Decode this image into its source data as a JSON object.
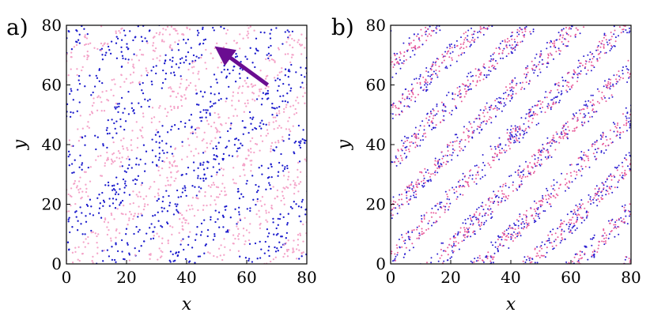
{
  "chart_data": [
    {
      "type": "scatter",
      "panel_label": "a)",
      "xlabel": "x",
      "ylabel": "y",
      "xlim": [
        0,
        80
      ],
      "ylim": [
        0,
        80
      ],
      "xticks": [
        "0",
        "20",
        "40",
        "60",
        "80"
      ],
      "yticks": [
        "0",
        "20",
        "40",
        "60",
        "80"
      ],
      "grid": false,
      "pattern": "diagonal stripes, slope 1, spacing ~22.6 along x",
      "series": [
        {
          "color": "#1a1acc",
          "stripe_offsets": [
            -82,
            -60,
            -37,
            -14,
            8,
            31,
            54,
            76
          ],
          "stripe_half_width": 6.5
        },
        {
          "color": "#f4a3c8",
          "stripe_offsets": [
            -71,
            -48,
            -25,
            -3,
            20,
            42,
            65,
            88
          ],
          "stripe_half_width": 5.5
        }
      ],
      "annotations": [
        {
          "type": "arrow",
          "color": "#6a0d91",
          "from": [
            67,
            60
          ],
          "to": [
            52,
            71
          ]
        }
      ]
    },
    {
      "type": "scatter",
      "panel_label": "b)",
      "xlabel": "x",
      "ylabel": "y",
      "xlim": [
        0,
        80
      ],
      "ylim": [
        0,
        80
      ],
      "xticks": [
        "0",
        "20",
        "40",
        "60",
        "80"
      ],
      "yticks": [
        "0",
        "20",
        "40",
        "60",
        "80"
      ],
      "grid": false,
      "pattern": "diagonal stripes with white gaps, slope 1, spacing ~16 along x",
      "series": [
        {
          "color": "#2b1ed0",
          "stripe_offsets": [
            -79,
            -62,
            -46,
            -30,
            -14,
            2,
            18,
            34,
            50,
            66,
            82
          ],
          "stripe_half_width": 4.2
        },
        {
          "color": "#e85a9a",
          "stripe_offsets": [
            -79,
            -62,
            -46,
            -30,
            -14,
            2,
            18,
            34,
            50,
            66,
            82
          ],
          "stripe_half_width": 3.2
        }
      ],
      "annotations": []
    }
  ]
}
